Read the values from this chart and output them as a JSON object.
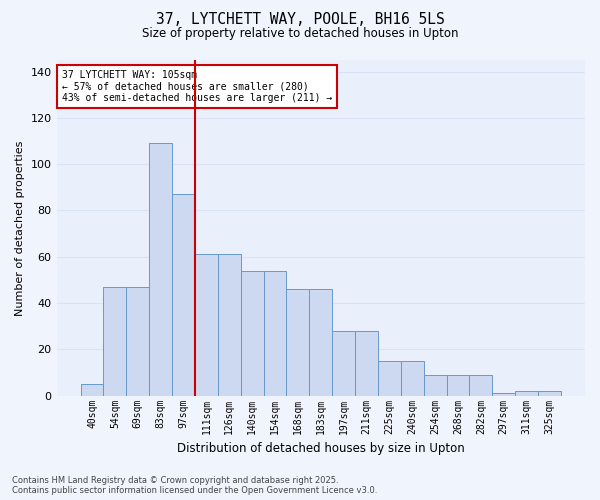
{
  "title1": "37, LYTCHETT WAY, POOLE, BH16 5LS",
  "title2": "Size of property relative to detached houses in Upton",
  "xlabel": "Distribution of detached houses by size in Upton",
  "ylabel": "Number of detached properties",
  "categories": [
    "40sqm",
    "54sqm",
    "69sqm",
    "83sqm",
    "97sqm",
    "111sqm",
    "126sqm",
    "140sqm",
    "154sqm",
    "168sqm",
    "183sqm",
    "197sqm",
    "211sqm",
    "225sqm",
    "240sqm",
    "254sqm",
    "268sqm",
    "282sqm",
    "297sqm",
    "311sqm",
    "325sqm"
  ],
  "values": [
    5,
    47,
    47,
    109,
    87,
    61,
    61,
    54,
    54,
    46,
    46,
    28,
    28,
    15,
    15,
    9,
    9,
    9,
    1,
    2,
    2
  ],
  "bar_color": "#ccd9f0",
  "bar_edge_color": "#6699cc",
  "vline_color": "#cc0000",
  "vline_pos": 4.5,
  "annotation_text": "37 LYTCHETT WAY: 105sqm\n← 57% of detached houses are smaller (280)\n43% of semi-detached houses are larger (211) →",
  "annotation_box_color": "#cc0000",
  "ylim": [
    0,
    145
  ],
  "yticks": [
    0,
    20,
    40,
    60,
    80,
    100,
    120,
    140
  ],
  "fig_bg": "#f0f4fc",
  "ax_bg": "#eaf0fb",
  "grid_color": "#d8e4f5",
  "footnote": "Contains HM Land Registry data © Crown copyright and database right 2025.\nContains public sector information licensed under the Open Government Licence v3.0."
}
